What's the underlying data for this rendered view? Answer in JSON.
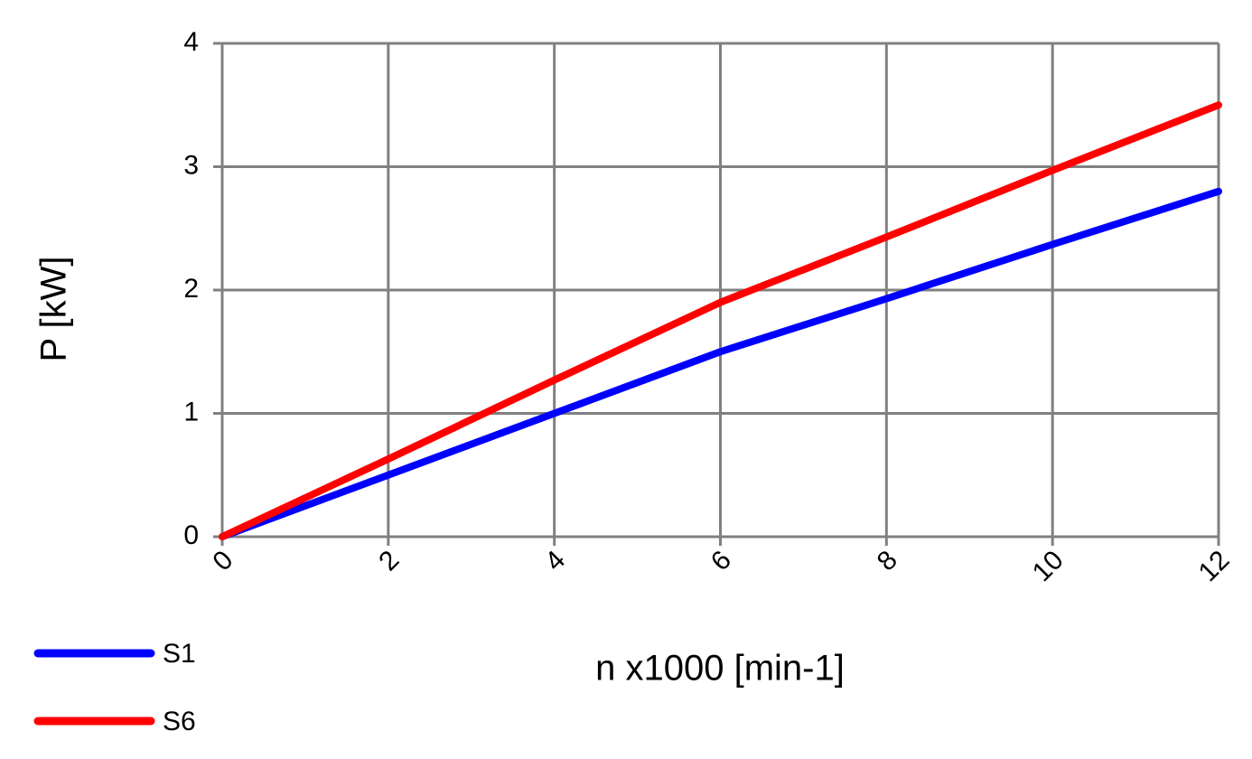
{
  "chart_data": {
    "type": "line",
    "x_label": "n x1000 [min-1]",
    "y_label": "P [kW]",
    "x": [
      0,
      2,
      4,
      6,
      8,
      10,
      12
    ],
    "series": [
      {
        "name": "S1",
        "color": "#0000ff",
        "values": [
          0,
          0.5,
          1.0,
          1.5,
          1.93,
          2.37,
          2.8
        ]
      },
      {
        "name": "S6",
        "color": "#ff0000",
        "values": [
          0,
          0.63,
          1.27,
          1.9,
          2.43,
          2.97,
          3.5
        ]
      }
    ],
    "xlim": [
      0,
      12
    ],
    "xticks": [
      0,
      2,
      4,
      6,
      8,
      10,
      12
    ],
    "ylim": [
      0,
      4
    ],
    "yticks": [
      0,
      1,
      2,
      3,
      4
    ],
    "grid": true,
    "legend": "bottom-left"
  }
}
